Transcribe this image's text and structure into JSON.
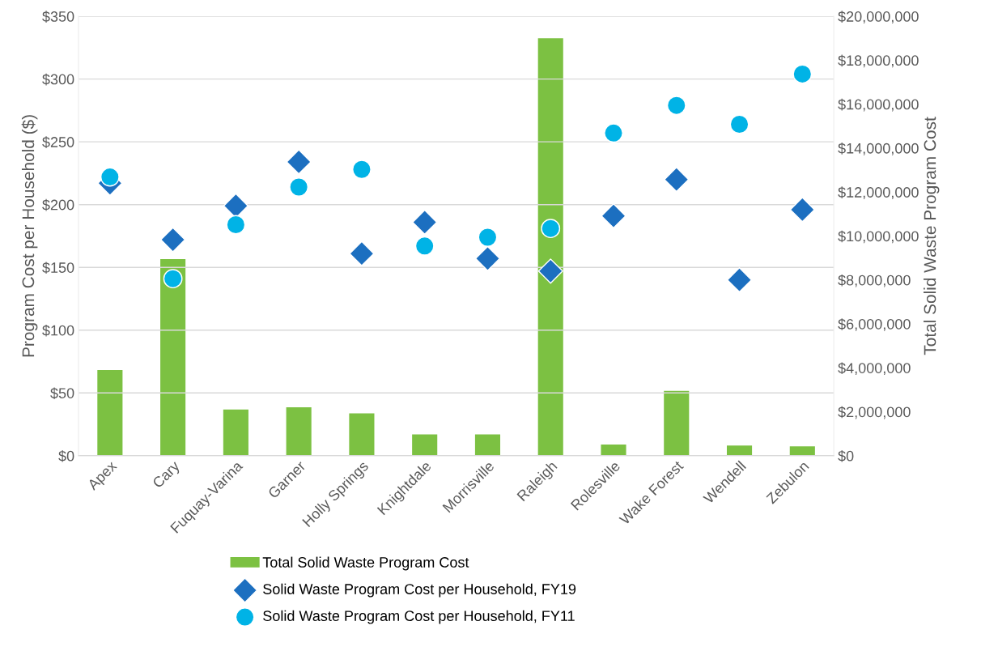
{
  "chart_data": {
    "type": "bar",
    "ylabel": "Program Cost per Household ($)",
    "y2label": "Total Solid Waste Program Cost",
    "categories": [
      "Apex",
      "Cary",
      "Fuquay-Varina",
      "Garner",
      "Holly Springs",
      "Knightdale",
      "Morrisville",
      "Raleigh",
      "Rolesville",
      "Wake Forest",
      "Wendell",
      "Zebulon"
    ],
    "series": [
      {
        "name": "Total Solid Waste Program Cost",
        "axis": "y2",
        "color": "#7cc142",
        "values": [
          3900000,
          8950000,
          2100000,
          2200000,
          1930000,
          970000,
          970000,
          19000000,
          510000,
          2950000,
          460000,
          430000
        ]
      },
      {
        "name": "Solid Waste Program Cost per Household, FY19",
        "type": "scatter",
        "marker": "diamond",
        "color": "#1c6fc0",
        "values": [
          217,
          172,
          199,
          234,
          161,
          186,
          157,
          147,
          191,
          220,
          140,
          196
        ]
      },
      {
        "name": "Solid Waste Program Cost per Household, FY11",
        "type": "scatter",
        "marker": "circle",
        "color": "#00b3e6",
        "values": [
          222,
          141,
          184,
          214,
          228,
          167,
          174,
          181,
          257,
          279,
          264,
          304
        ]
      }
    ],
    "ylim": [
      0,
      350
    ],
    "yticks": [
      {
        "value": 0,
        "label": "$0"
      },
      {
        "value": 50,
        "label": "$50"
      },
      {
        "value": 100,
        "label": "$100"
      },
      {
        "value": 150,
        "label": "$150"
      },
      {
        "value": 200,
        "label": "$200"
      },
      {
        "value": 250,
        "label": "$250"
      },
      {
        "value": 300,
        "label": "$300"
      },
      {
        "value": 350,
        "label": "$350"
      }
    ],
    "y2lim": [
      0,
      20000000
    ],
    "y2ticks": [
      {
        "value": 0,
        "label": "$0"
      },
      {
        "value": 2000000,
        "label": "$2,000,000"
      },
      {
        "value": 4000000,
        "label": "$4,000,000"
      },
      {
        "value": 6000000,
        "label": "$6,000,000"
      },
      {
        "value": 8000000,
        "label": "$8,000,000"
      },
      {
        "value": 10000000,
        "label": "$10,000,000"
      },
      {
        "value": 12000000,
        "label": "$12,000,000"
      },
      {
        "value": 14000000,
        "label": "$14,000,000"
      },
      {
        "value": 16000000,
        "label": "$16,000,000"
      },
      {
        "value": 18000000,
        "label": "$18,000,000"
      },
      {
        "value": 20000000,
        "label": "$20,000,000"
      }
    ],
    "grid": "y",
    "legend": "bottom"
  }
}
